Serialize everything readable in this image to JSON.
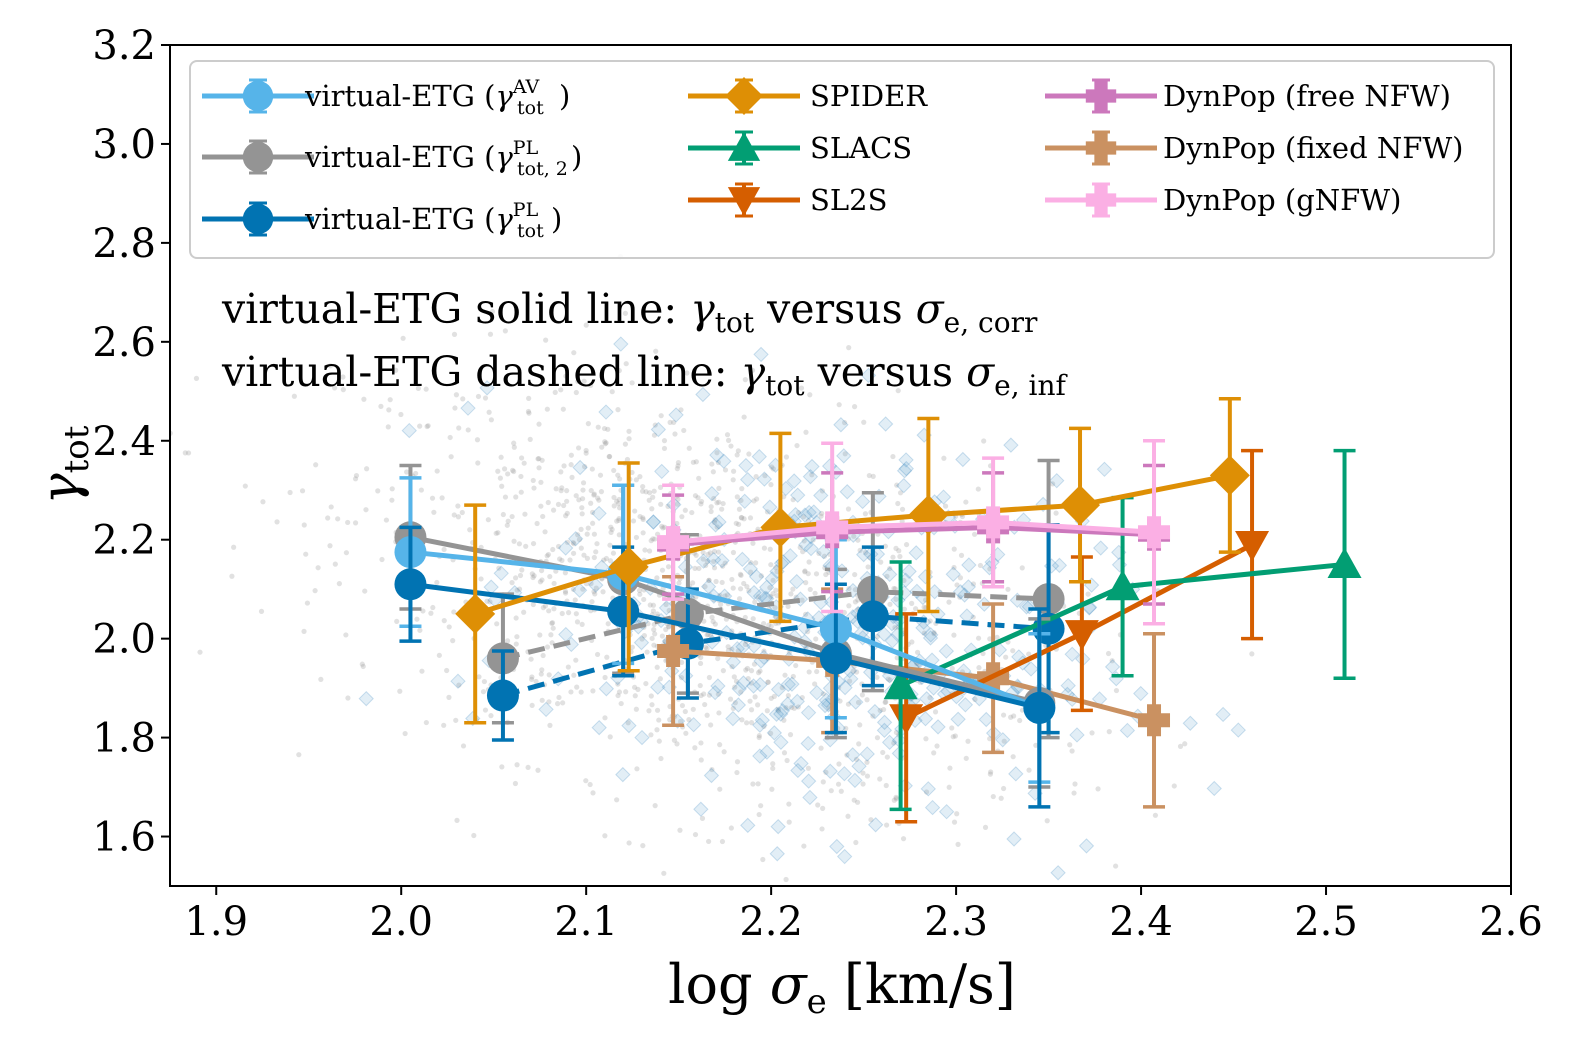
{
  "chart_data": {
    "type": "scatter",
    "xlabel": {
      "main": "log ",
      "sym": "σ",
      "sub": "e",
      "unit": " [km/s]"
    },
    "ylabel": {
      "sym": "γ",
      "sub": "tot"
    },
    "xlim": [
      1.875,
      2.6
    ],
    "ylim": [
      1.5,
      3.2
    ],
    "x_ticks": [
      "1.9",
      "2.0",
      "2.1",
      "2.2",
      "2.3",
      "2.4",
      "2.5",
      "2.6"
    ],
    "y_ticks": [
      "1.6",
      "1.8",
      "2.0",
      "2.2",
      "2.4",
      "2.6",
      "2.8",
      "3.0",
      "3.2"
    ],
    "annotations": [
      {
        "prefix": "virtual-ETG solid line: ",
        "sym1": "γ",
        "sub1": "tot",
        "mid": " versus ",
        "sym2": "σ",
        "sub2": "e, corr"
      },
      {
        "prefix": "virtual-ETG dashed line: ",
        "sym1": "γ",
        "sub1": "tot",
        "mid": " versus ",
        "sym2": "σ",
        "sub2": "e, inf"
      }
    ],
    "legend": [
      {
        "series": "vetg_av",
        "text": "virtual-ETG (",
        "sym": "γ",
        "sub": "tot",
        "sup": "AV",
        "close": ")"
      },
      {
        "series": "vetg_pl2",
        "text": "virtual-ETG (",
        "sym": "γ",
        "sub": "tot, 2",
        "sup": "PL",
        "close": ")"
      },
      {
        "series": "vetg_pl",
        "text": "virtual-ETG (",
        "sym": "γ",
        "sub": "tot",
        "sup": "PL",
        "close": ")"
      },
      {
        "series": "spider",
        "text": "SPIDER"
      },
      {
        "series": "slacs",
        "text": "SLACS"
      },
      {
        "series": "sl2s",
        "text": "SL2S"
      },
      {
        "series": "dyn_free",
        "text": "DynPop (free NFW)"
      },
      {
        "series": "dyn_fixed",
        "text": "DynPop (fixed NFW)"
      },
      {
        "series": "dyn_gnfw",
        "text": "DynPop (gNFW)"
      }
    ],
    "series": [
      {
        "id": "vetg_av",
        "name": "virtual-ETG (γ_tot^AV)",
        "color": "#56B4E9",
        "marker": "circle",
        "line": "solid",
        "x": [
          2.005,
          2.12,
          2.235,
          2.345
        ],
        "y": [
          2.175,
          2.13,
          2.02,
          1.86
        ],
        "err": [
          0.15,
          0.18,
          0.18,
          0.15
        ]
      },
      {
        "id": "vetg_pl2",
        "name": "virtual-ETG (γ_tot,2^PL)",
        "color": "#949494",
        "marker": "circle",
        "line": "solid",
        "x": [
          2.005,
          2.12,
          2.235,
          2.345
        ],
        "y": [
          2.205,
          2.12,
          1.97,
          1.87
        ],
        "err": [
          0.145,
          0.19,
          0.17,
          0.17
        ]
      },
      {
        "id": "vetg_pl",
        "name": "virtual-ETG (γ_tot^PL)",
        "color": "#0173B2",
        "marker": "circle",
        "line": "solid",
        "x": [
          2.005,
          2.12,
          2.235,
          2.345
        ],
        "y": [
          2.11,
          2.055,
          1.96,
          1.86
        ],
        "err": [
          0.115,
          0.13,
          0.15,
          0.2
        ]
      },
      {
        "id": "vetg_pl2_inf",
        "name": "virtual-ETG (γ_tot,2^PL) inferred σ",
        "color": "#949494",
        "marker": "circle",
        "line": "dashed",
        "x": [
          2.055,
          2.155,
          2.255,
          2.35
        ],
        "y": [
          1.96,
          2.05,
          2.095,
          2.08
        ],
        "err": [
          0.13,
          0.16,
          0.2,
          0.28
        ]
      },
      {
        "id": "vetg_pl_inf",
        "name": "virtual-ETG (γ_tot^PL) inferred σ",
        "color": "#0173B2",
        "marker": "circle",
        "line": "dashed",
        "x": [
          2.055,
          2.155,
          2.255,
          2.35
        ],
        "y": [
          1.885,
          1.99,
          2.045,
          2.02
        ],
        "err": [
          0.09,
          0.11,
          0.14,
          0.21
        ]
      },
      {
        "id": "spider",
        "name": "SPIDER",
        "color": "#DE8F05",
        "marker": "diamond",
        "line": "solid",
        "x": [
          2.04,
          2.123,
          2.205,
          2.285,
          2.367,
          2.448
        ],
        "y": [
          2.05,
          2.145,
          2.225,
          2.25,
          2.27,
          2.33
        ],
        "err": [
          0.22,
          0.21,
          0.19,
          0.195,
          0.155,
          0.155
        ]
      },
      {
        "id": "slacs",
        "name": "SLACS",
        "color": "#029E73",
        "marker": "triangle",
        "line": "solid",
        "x": [
          2.27,
          2.39,
          2.51
        ],
        "y": [
          1.905,
          2.105,
          2.15
        ],
        "err": [
          0.25,
          0.18,
          0.23
        ]
      },
      {
        "id": "sl2s",
        "name": "SL2S",
        "color": "#D55E00",
        "marker": "triangle-down",
        "line": "solid",
        "x": [
          2.273,
          2.368,
          2.46
        ],
        "y": [
          1.84,
          2.01,
          2.19
        ],
        "err": [
          0.21,
          0.155,
          0.19
        ]
      },
      {
        "id": "dyn_free",
        "name": "DynPop (free NFW)",
        "color": "#CC78BC",
        "marker": "plus",
        "line": "solid",
        "x": [
          2.147,
          2.233,
          2.32,
          2.407
        ],
        "y": [
          2.19,
          2.215,
          2.225,
          2.21
        ],
        "err": [
          0.1,
          0.12,
          0.11,
          0.14
        ]
      },
      {
        "id": "dyn_fixed",
        "name": "DynPop (fixed NFW)",
        "color": "#CA9161",
        "marker": "plus",
        "line": "solid",
        "x": [
          2.147,
          2.233,
          2.32,
          2.407
        ],
        "y": [
          1.975,
          1.955,
          1.92,
          1.835
        ],
        "err": [
          0.15,
          0.145,
          0.15,
          0.175
        ]
      },
      {
        "id": "dyn_gnfw",
        "name": "DynPop (gNFW)",
        "color": "#FBAFE4",
        "marker": "plus",
        "line": "solid",
        "x": [
          2.147,
          2.233,
          2.32,
          2.407
        ],
        "y": [
          2.195,
          2.225,
          2.235,
          2.215
        ],
        "err": [
          0.115,
          0.17,
          0.13,
          0.185
        ]
      }
    ]
  }
}
